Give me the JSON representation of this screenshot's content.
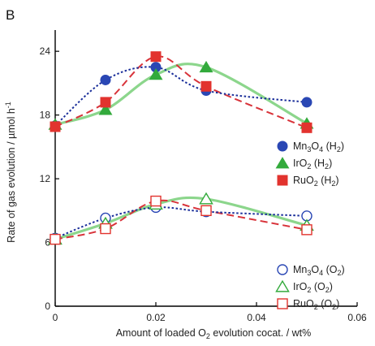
{
  "panel_label": "B",
  "chart_data": {
    "type": "scatter",
    "xlabel": "Amount of loaded O",
    "xlabel_sub": "2",
    "xlabel_rest": " evolution cocat. / wt%",
    "ylabel": "Rate of gas evolution / µmol h",
    "ylabel_sup": "-1",
    "xlim": [
      0,
      0.06
    ],
    "ylim": [
      0,
      26
    ],
    "x_ticks": [
      0,
      0.02,
      0.04,
      0.06
    ],
    "x_tick_labels": [
      "0",
      "0.02",
      "0.04",
      "0.06"
    ],
    "y_ticks": [
      0,
      6,
      12,
      18,
      24
    ],
    "y_tick_labels": [
      "0",
      "6",
      "12",
      "18",
      "24"
    ],
    "grid": false,
    "legend_placement": "right",
    "series": [
      {
        "name_main": "Mn",
        "name_sub1": "3",
        "name_mid": "O",
        "name_sub2": "4",
        "name_tail": " (H",
        "name_sub3": "2",
        "name_end": ")",
        "marker": "circle",
        "filled": true,
        "color": "#2a47b4",
        "line": "dotted",
        "x": [
          0,
          0.01,
          0.02,
          0.03,
          0.05
        ],
        "y": [
          17,
          21.3,
          22.5,
          20.3,
          19.2
        ]
      },
      {
        "name_main": "IrO",
        "name_sub1": "2",
        "name_tail": " (H",
        "name_sub3": "2",
        "name_end": ")",
        "marker": "triangle",
        "filled": true,
        "color": "#33aa3c",
        "line": "solid-light",
        "x": [
          0,
          0.01,
          0.02,
          0.03,
          0.05
        ],
        "y": [
          17.1,
          18.5,
          21.8,
          22.5,
          17.2
        ]
      },
      {
        "name_main": "RuO",
        "name_sub1": "2",
        "name_tail": " (H",
        "name_sub3": "2",
        "name_end": ")",
        "marker": "square",
        "filled": true,
        "color": "#e2332e",
        "line": "dashed",
        "x": [
          0,
          0.01,
          0.02,
          0.03,
          0.05
        ],
        "y": [
          16.9,
          19.2,
          23.5,
          20.7,
          16.8
        ]
      },
      {
        "name_main": "Mn",
        "name_sub1": "3",
        "name_mid": "O",
        "name_sub2": "4",
        "name_tail": " (O",
        "name_sub3": "2",
        "name_end": ")",
        "marker": "circle",
        "filled": false,
        "color": "#2a47b4",
        "line": "dotted",
        "x": [
          0,
          0.01,
          0.02,
          0.03,
          0.05
        ],
        "y": [
          6.4,
          8.3,
          9.3,
          8.9,
          8.5
        ]
      },
      {
        "name_main": "IrO",
        "name_sub1": "2",
        "name_tail": " (O",
        "name_sub3": "2",
        "name_end": ")",
        "marker": "triangle",
        "filled": false,
        "color": "#33aa3c",
        "line": "solid-light",
        "x": [
          0,
          0.01,
          0.02,
          0.03,
          0.05
        ],
        "y": [
          6.3,
          7.8,
          9.6,
          10.1,
          7.6
        ]
      },
      {
        "name_main": "RuO",
        "name_sub1": "2",
        "name_tail": " (O",
        "name_sub3": "2",
        "name_end": ")",
        "marker": "square",
        "filled": false,
        "color": "#e2332e",
        "line": "dashed",
        "x": [
          0,
          0.01,
          0.02,
          0.03,
          0.05
        ],
        "y": [
          6.3,
          7.3,
          9.9,
          9.0,
          7.2
        ]
      }
    ]
  }
}
